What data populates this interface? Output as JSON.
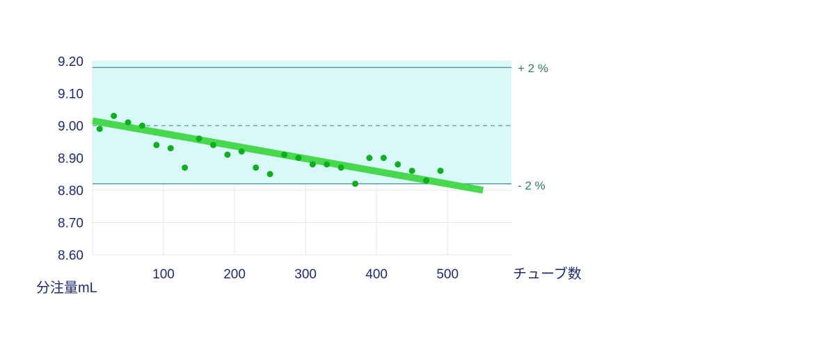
{
  "chart_data": {
    "type": "scatter",
    "xlabel": "チューブ数",
    "ylabel": "分注量mL",
    "xlim": [
      0,
      590
    ],
    "ylim": [
      8.6,
      9.2
    ],
    "x_ticks": [
      100,
      200,
      300,
      400,
      500
    ],
    "y_ticks": [
      8.6,
      8.7,
      8.8,
      8.9,
      9.0,
      9.1,
      9.2
    ],
    "x_tick_labels": [
      "100",
      "200",
      "300",
      "400",
      "500"
    ],
    "y_tick_labels": [
      "8.60",
      "8.70",
      "8.80",
      "8.90",
      "9.00",
      "9.10",
      "9.20"
    ],
    "grid": true,
    "tolerance_band": {
      "upper": 9.18,
      "lower": 8.82,
      "center": 9.0
    },
    "band_labels": {
      "upper": "+ 2 %",
      "lower": "- 2 %"
    },
    "trend_line": {
      "x": [
        0,
        550
      ],
      "y": [
        9.015,
        8.8
      ]
    },
    "points": {
      "x": [
        10,
        30,
        50,
        70,
        90,
        110,
        130,
        150,
        170,
        190,
        210,
        230,
        250,
        270,
        290,
        310,
        330,
        350,
        370,
        390,
        410,
        430,
        450,
        470,
        490
      ],
      "y": [
        8.99,
        9.03,
        9.01,
        9.0,
        8.94,
        8.93,
        8.87,
        8.96,
        8.94,
        8.91,
        8.92,
        8.87,
        8.85,
        8.91,
        8.9,
        8.88,
        8.88,
        8.87,
        8.82,
        8.9,
        8.9,
        8.88,
        8.86,
        8.83,
        8.86
      ]
    },
    "colors": {
      "band_fill": "#d9f8f8",
      "band_line": "#5a9ea0",
      "center_line": "#6aa8aa",
      "trend": "#47d84f",
      "points": "#0eaf1e",
      "axis_text": "#1f2a6b",
      "band_label": "#2e7d5a",
      "grid": "#e6e6e6"
    }
  }
}
